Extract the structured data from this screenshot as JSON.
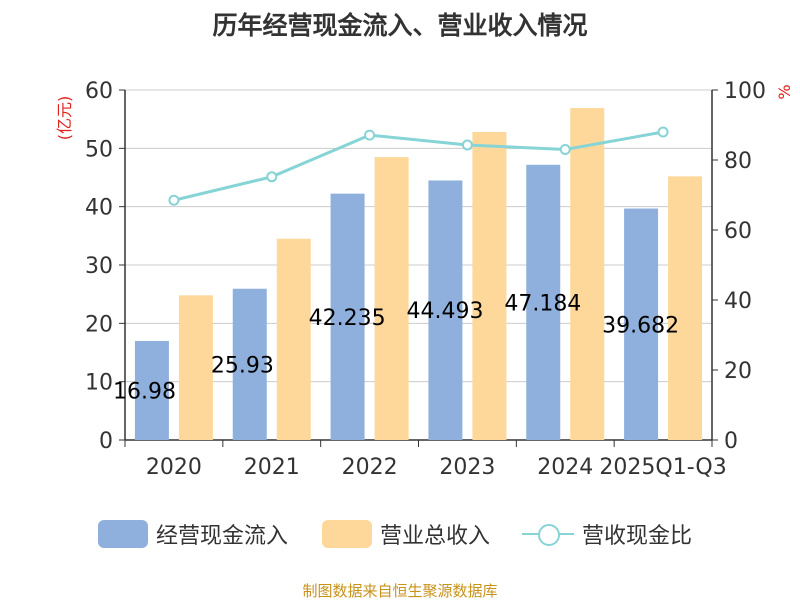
{
  "chart_data": {
    "type": "bar",
    "title": "历年经营现金流入、营业收入情况",
    "categories": [
      "2020",
      "2021",
      "2022",
      "2023",
      "2024",
      "2025Q1-Q3"
    ],
    "y_left": {
      "label": "(亿元)",
      "range": [
        0,
        60
      ],
      "ticks": [
        0,
        10,
        20,
        30,
        40,
        50,
        60
      ]
    },
    "y_right": {
      "label": "%",
      "range": [
        0,
        100
      ],
      "ticks": [
        0,
        20,
        40,
        60,
        80,
        100
      ]
    },
    "series": [
      {
        "name": "经营现金流入",
        "type": "bar",
        "axis": "left",
        "color": "#8fb0dc",
        "values": [
          16.98,
          25.93,
          42.23,
          44.49,
          47.18,
          39.68
        ],
        "data_labels": [
          "16.98",
          "25.93",
          "42.235",
          "44.493",
          "47.184",
          "39.682"
        ]
      },
      {
        "name": "营业总收入",
        "type": "bar",
        "axis": "left",
        "color": "#fdd89a",
        "values": [
          24.8,
          34.5,
          48.5,
          52.8,
          56.9,
          45.2
        ]
      },
      {
        "name": "营收现金比",
        "type": "line",
        "axis": "right",
        "color": "#86d4d6",
        "values": [
          68.5,
          75.2,
          87.1,
          84.3,
          83.0,
          88.0
        ]
      }
    ],
    "grid": true,
    "legend_position": "bottom"
  },
  "source": "制图数据来自恒生聚源数据库"
}
